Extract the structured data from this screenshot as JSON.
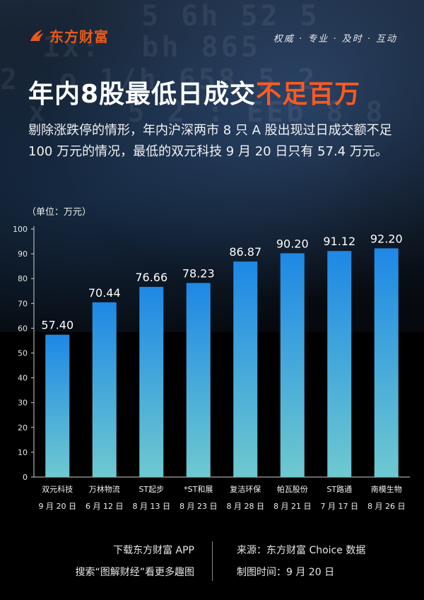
{
  "header": {
    "logo_text": "东方财富",
    "slogan": "权威 · 专业 · 及时 · 互动"
  },
  "title": {
    "main": "年内8股最低日成交",
    "highlight": "不足百万"
  },
  "description": "剔除涨跌停的情形，年内沪深两市 8 只 A 股出现过日成交额不足 100 万元的情况，最低的双元科技 9 月 20 日只有 57.4 万元。",
  "unit_label": "（单位：万元）",
  "chart_data": {
    "type": "bar",
    "categories": [
      "双元科技",
      "万林物流",
      "ST起步",
      "*ST和展",
      "复洁环保",
      "帕瓦股份",
      "ST路通",
      "南模生物"
    ],
    "dates": [
      "9 月 20 日",
      "6 月 12 日",
      "8 月 13 日",
      "8 月 23 日",
      "8 月 28 日",
      "8 月 21 日",
      "7 月 17 日",
      "8 月 26 日"
    ],
    "values": [
      57.4,
      70.44,
      76.66,
      78.23,
      86.87,
      90.2,
      91.12,
      92.2
    ],
    "value_labels": [
      "57.40",
      "70.44",
      "76.66",
      "78.23",
      "86.87",
      "90.20",
      "91.12",
      "92.20"
    ],
    "yticks": [
      0,
      10,
      20,
      30,
      40,
      50,
      60,
      70,
      80,
      90,
      100
    ],
    "ylim": [
      0,
      100
    ],
    "grid": false,
    "bar_color_top": "#1e88e5",
    "bar_color_bottom": "#6ec9cf"
  },
  "footer": {
    "left_line1": "下载东方财富 APP",
    "left_line2": "搜索“图解财经”看更多趣图",
    "right_line1": "来源：东方财富 Choice 数据",
    "right_line2": "制图时间：9 月 20 日"
  },
  "colors": {
    "brand": "#e85a1c",
    "highlight": "#ff5a1f"
  }
}
